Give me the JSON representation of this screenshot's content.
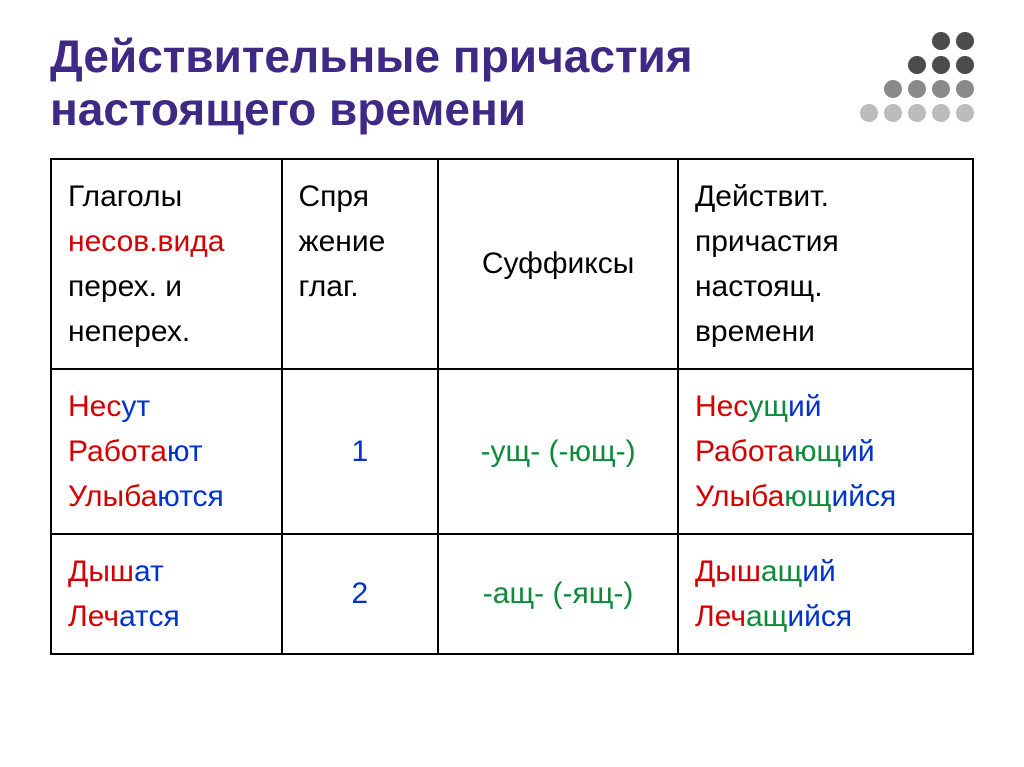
{
  "title_color": "#3e2a84",
  "title": "Действительные причастия настоящего времени",
  "dot_colors": {
    "dark": "#4b4b4b",
    "mid": "#8a8a8a",
    "light": "#bcbcbc"
  },
  "colors": {
    "black": "#000000",
    "red": "#d40000",
    "blue": "#0033cc",
    "green": "#0e8a3a"
  },
  "header": {
    "c1_l1": "Глаголы",
    "c1_l2": "несов.вида",
    "c1_l3": "перех. и неперех.",
    "c2_l1": "Спря",
    "c2_l2": "жение глаг.",
    "c3": "Суффиксы",
    "c4_l1": "Действит.",
    "c4_l2": "причастия настоящ.",
    "c4_l3": "времени"
  },
  "row1": {
    "conj": "1",
    "suffix": "-ущ- (-ющ-)",
    "verbs": [
      {
        "stem": "Нес",
        "end": "ут"
      },
      {
        "stem": "Работа",
        "end": "ют"
      },
      {
        "stem": "Улыба",
        "end": "ются"
      }
    ],
    "parts": [
      {
        "stem": "Нес",
        "suf": "ущ",
        "end": "ий"
      },
      {
        "stem": "Работа",
        "suf": "ющ",
        "end": "ий"
      },
      {
        "stem": "Улыба",
        "suf": "ющ",
        "end": "ийся"
      }
    ]
  },
  "row2": {
    "conj": "2",
    "suffix": "-ащ- (-ящ-)",
    "verbs": [
      {
        "stem": "Дыш",
        "end": "ат"
      },
      {
        "stem": "Леч",
        "end": "атся"
      }
    ],
    "parts": [
      {
        "stem": "Дыш",
        "suf": "ащ",
        "end": "ий"
      },
      {
        "stem": "Леч",
        "suf": "ащ",
        "end": "ийся"
      }
    ]
  }
}
